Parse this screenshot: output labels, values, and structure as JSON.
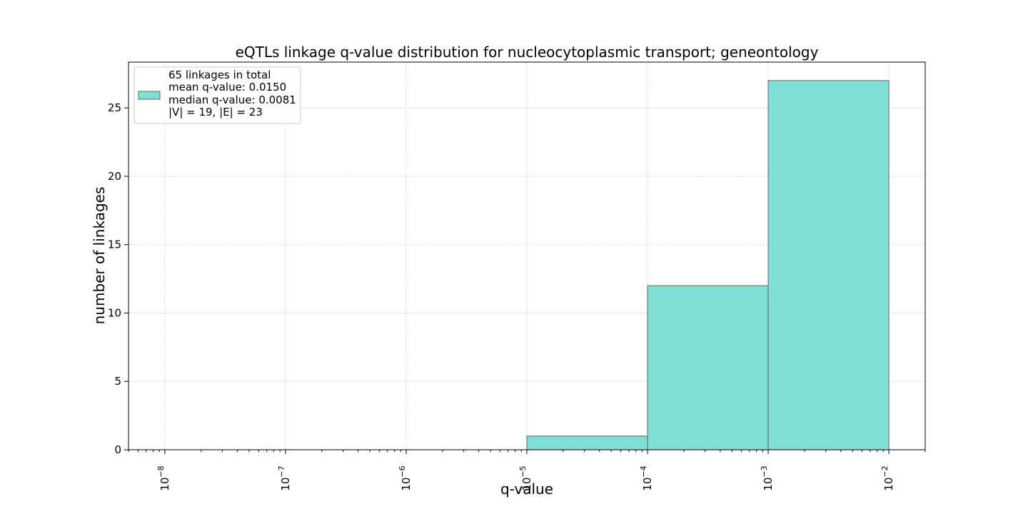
{
  "chart_data": {
    "type": "bar",
    "title": "eQTLs linkage q-value distribution for nucleocytoplasmic transport; geneontology",
    "xlabel": "q-value",
    "ylabel": "number of linkages",
    "x_scale": "log",
    "xlim": [
      5e-09,
      0.02
    ],
    "ylim": [
      0,
      28.35
    ],
    "grid": true,
    "legend_placement": "upper-left",
    "bar_color": "#7fdfd4",
    "edge_color": "#5a6b68",
    "series": [
      {
        "legend": [
          "65 linkages in total",
          "mean q-value: 0.0150",
          "median q-value: 0.0081",
          "|V| = 19, |E| = 23"
        ],
        "bins": [
          {
            "x0": 1e-05,
            "x1": 0.0001,
            "value": 1
          },
          {
            "x0": 0.0001,
            "x1": 0.001,
            "value": 12
          },
          {
            "x0": 0.001,
            "x1": 0.01,
            "value": 27
          }
        ]
      }
    ],
    "x_ticks": [
      {
        "value": 1e-08,
        "base": "10",
        "exp": "−8"
      },
      {
        "value": 1e-07,
        "base": "10",
        "exp": "−7"
      },
      {
        "value": 1e-06,
        "base": "10",
        "exp": "−6"
      },
      {
        "value": 1e-05,
        "base": "10",
        "exp": "−5"
      },
      {
        "value": 0.0001,
        "base": "10",
        "exp": "−4"
      },
      {
        "value": 0.001,
        "base": "10",
        "exp": "−3"
      },
      {
        "value": 0.01,
        "base": "10",
        "exp": "−2"
      }
    ],
    "y_ticks": [
      {
        "value": 0,
        "label": "0"
      },
      {
        "value": 5,
        "label": "5"
      },
      {
        "value": 10,
        "label": "10"
      },
      {
        "value": 15,
        "label": "15"
      },
      {
        "value": 20,
        "label": "20"
      },
      {
        "value": 25,
        "label": "25"
      }
    ]
  }
}
